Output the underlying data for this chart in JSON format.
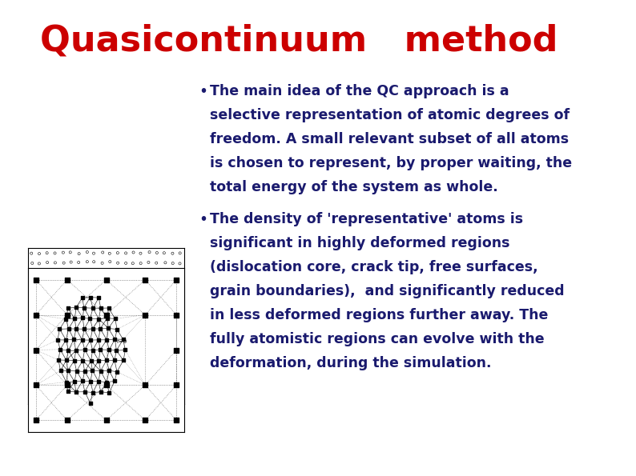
{
  "title": "Quasicontinuum   method",
  "title_color": "#CC0000",
  "title_fontsize": 32,
  "bg_color": "#FFFFFF",
  "bullet_color": "#1a1a6e",
  "bullet1_lines": [
    "The main idea of the QC approach is a",
    "selective representation of atomic degrees of",
    "freedom. A small relevant subset of all atoms",
    "is chosen to represent, by proper waiting, the",
    "total energy of the system as whole."
  ],
  "bullet2_lines": [
    "The density of 'representative' atoms is",
    "significant in highly deformed regions",
    "(dislocation core, crack tip, free surfaces,",
    "grain boundaries),  and significantly reduced",
    "in less deformed regions further away. The",
    "fully atomistic regions can evolve with the",
    "deformation, during the simulation."
  ],
  "text_fontsize": 12.5
}
